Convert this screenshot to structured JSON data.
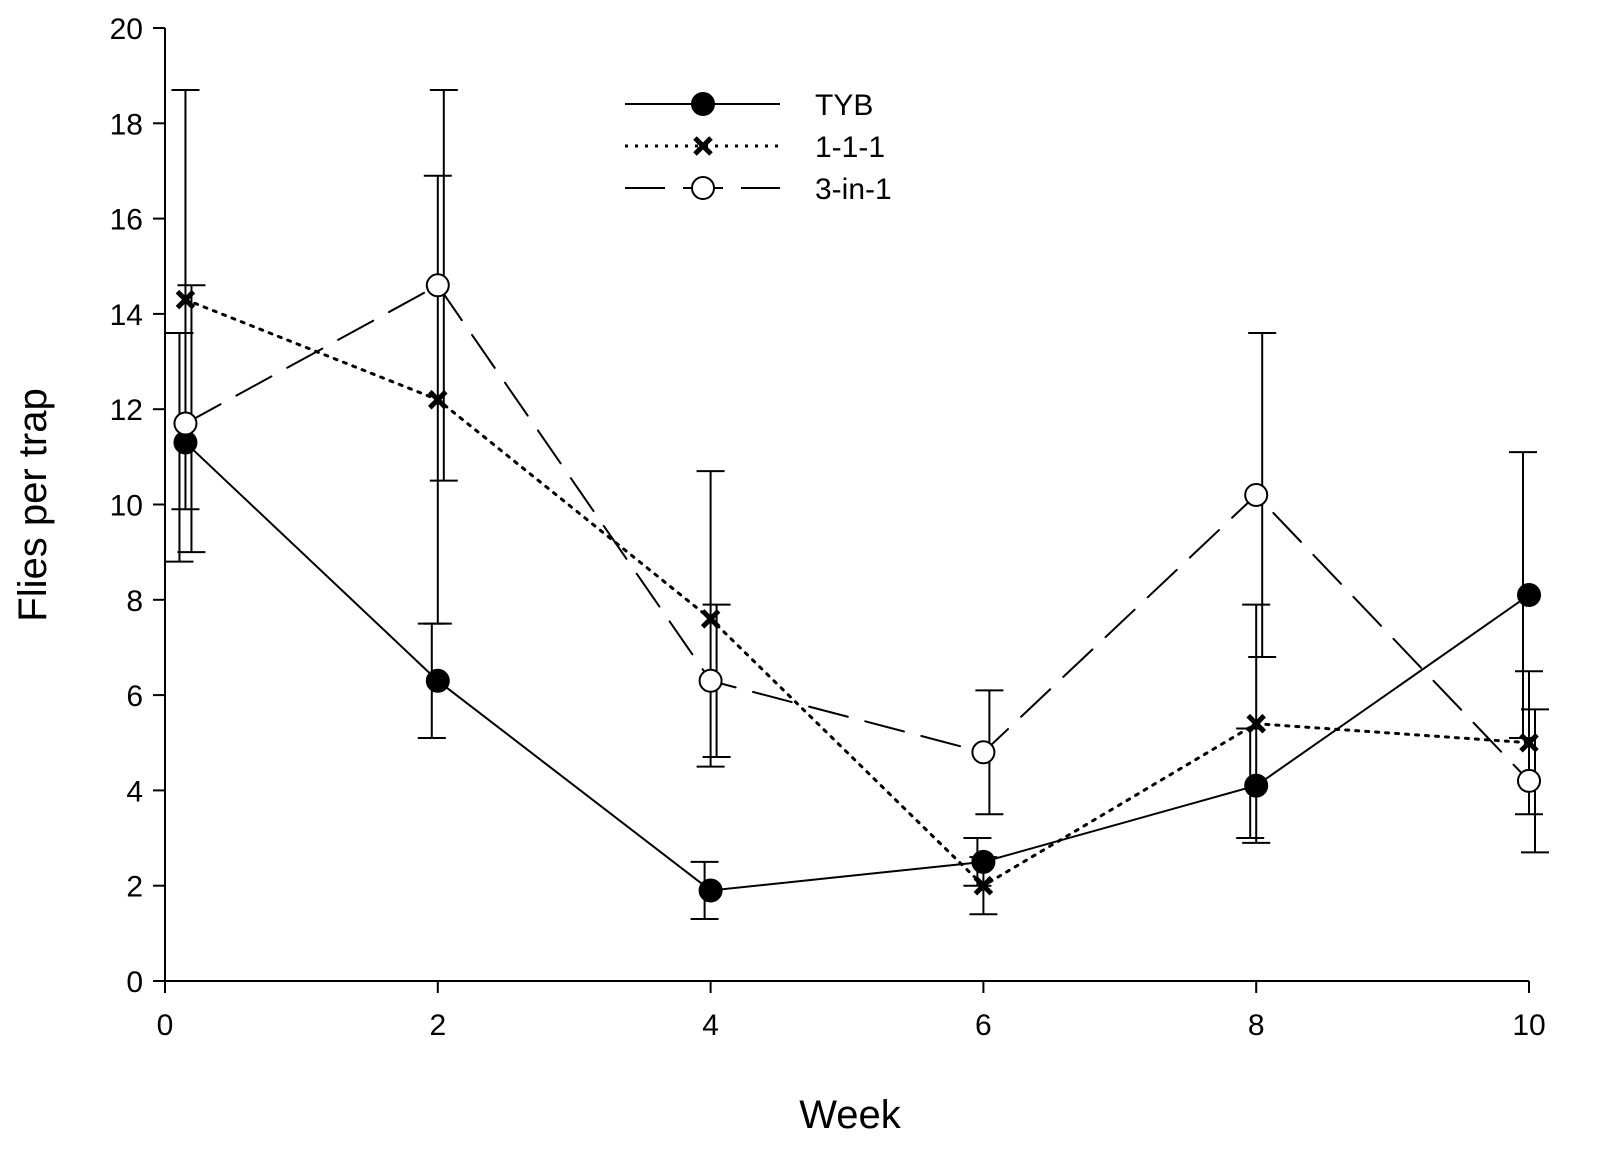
{
  "chart_data": {
    "type": "line",
    "xlabel": "Week",
    "ylabel": "Flies per trap",
    "xlim": [
      0,
      10
    ],
    "ylim": [
      0,
      20
    ],
    "xticks": [
      0,
      2,
      4,
      6,
      8,
      10
    ],
    "yticks": [
      0,
      2,
      4,
      6,
      8,
      10,
      12,
      14,
      16,
      18,
      20
    ],
    "grid": false,
    "legend_position": "top-center",
    "series": [
      {
        "name": "TYB",
        "marker": "filled-circle",
        "line_style": "solid",
        "x": [
          0.15,
          2,
          4,
          6,
          8,
          10
        ],
        "y": [
          11.3,
          6.3,
          1.9,
          2.5,
          4.1,
          8.1
        ],
        "err_low": [
          8.8,
          5.1,
          1.3,
          2.0,
          3.0,
          5.1
        ],
        "err_high": [
          13.6,
          7.5,
          2.5,
          3.0,
          5.3,
          11.1
        ]
      },
      {
        "name": "1-1-1",
        "marker": "x",
        "line_style": "dotted",
        "x": [
          0.15,
          2,
          4,
          6,
          8,
          10
        ],
        "y": [
          14.3,
          12.2,
          7.6,
          2.0,
          5.4,
          5.0
        ],
        "err_low": [
          9.9,
          7.5,
          4.5,
          1.4,
          2.9,
          3.5
        ],
        "err_high": [
          18.7,
          16.9,
          10.7,
          2.6,
          7.9,
          6.5
        ]
      },
      {
        "name": "3-in-1",
        "marker": "open-circle",
        "line_style": "dashed",
        "x": [
          0.15,
          2,
          4,
          6,
          8,
          10
        ],
        "y": [
          11.7,
          14.6,
          6.3,
          4.8,
          10.2,
          4.2
        ],
        "err_low": [
          9.0,
          10.5,
          4.7,
          3.5,
          6.8,
          2.7
        ],
        "err_high": [
          14.6,
          18.7,
          7.9,
          6.1,
          13.6,
          5.7
        ]
      }
    ]
  }
}
